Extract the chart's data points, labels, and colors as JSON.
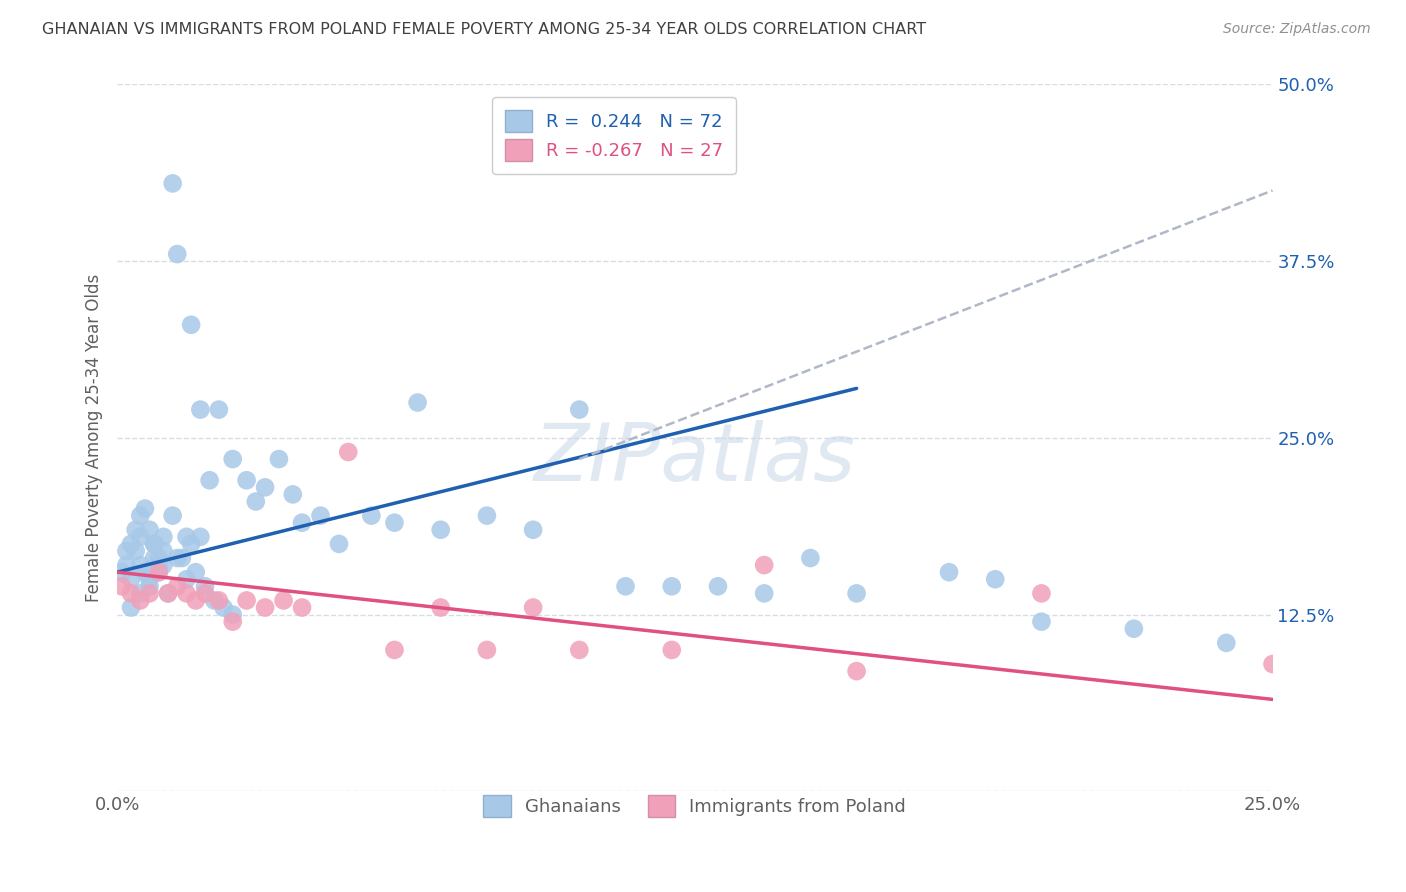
{
  "title": "GHANAIAN VS IMMIGRANTS FROM POLAND FEMALE POVERTY AMONG 25-34 YEAR OLDS CORRELATION CHART",
  "source": "Source: ZipAtlas.com",
  "ylabel": "Female Poverty Among 25-34 Year Olds",
  "xlim": [
    0.0,
    0.25
  ],
  "ylim": [
    0.0,
    0.5
  ],
  "yticks": [
    0.0,
    0.125,
    0.25,
    0.375,
    0.5
  ],
  "ytick_labels": [
    "",
    "12.5%",
    "25.0%",
    "37.5%",
    "50.0%"
  ],
  "xticks": [
    0.0,
    0.25
  ],
  "xtick_labels": [
    "0.0%",
    "25.0%"
  ],
  "legend_label1": "R =  0.244   N = 72",
  "legend_label2": "R = -0.267   N = 27",
  "blue_color": "#a8c8e8",
  "pink_color": "#f0a0b8",
  "blue_line_color": "#2060b0",
  "pink_line_color": "#e05080",
  "dashed_line_color": "#b0b8c8",
  "watermark": "ZIPatlas",
  "background_color": "#ffffff",
  "grid_color": "#d8dce8",
  "title_color": "#404040",
  "blue_x": [
    0.001,
    0.002,
    0.003,
    0.004,
    0.005,
    0.006,
    0.007,
    0.008,
    0.009,
    0.01,
    0.005,
    0.008,
    0.01,
    0.012,
    0.013,
    0.015,
    0.016,
    0.018,
    0.002,
    0.003,
    0.004,
    0.005,
    0.006,
    0.007,
    0.008,
    0.009,
    0.01,
    0.012,
    0.014,
    0.016,
    0.018,
    0.02,
    0.022,
    0.025,
    0.028,
    0.03,
    0.032,
    0.035,
    0.038,
    0.04,
    0.044,
    0.048,
    0.055,
    0.06,
    0.065,
    0.07,
    0.08,
    0.09,
    0.1,
    0.11,
    0.12,
    0.13,
    0.14,
    0.15,
    0.16,
    0.18,
    0.19,
    0.2,
    0.22,
    0.24,
    0.003,
    0.005,
    0.007,
    0.009,
    0.011,
    0.013,
    0.015,
    0.017,
    0.019,
    0.021,
    0.023,
    0.025
  ],
  "blue_y": [
    0.155,
    0.16,
    0.15,
    0.17,
    0.16,
    0.155,
    0.15,
    0.165,
    0.16,
    0.17,
    0.18,
    0.175,
    0.18,
    0.43,
    0.38,
    0.18,
    0.33,
    0.27,
    0.17,
    0.175,
    0.185,
    0.195,
    0.2,
    0.185,
    0.175,
    0.165,
    0.16,
    0.195,
    0.165,
    0.175,
    0.18,
    0.22,
    0.27,
    0.235,
    0.22,
    0.205,
    0.215,
    0.235,
    0.21,
    0.19,
    0.195,
    0.175,
    0.195,
    0.19,
    0.275,
    0.185,
    0.195,
    0.185,
    0.27,
    0.145,
    0.145,
    0.145,
    0.14,
    0.165,
    0.14,
    0.155,
    0.15,
    0.12,
    0.115,
    0.105,
    0.13,
    0.14,
    0.145,
    0.155,
    0.14,
    0.165,
    0.15,
    0.155,
    0.145,
    0.135,
    0.13,
    0.125
  ],
  "pink_x": [
    0.001,
    0.003,
    0.005,
    0.007,
    0.009,
    0.011,
    0.013,
    0.015,
    0.017,
    0.019,
    0.022,
    0.025,
    0.028,
    0.032,
    0.036,
    0.04,
    0.05,
    0.06,
    0.07,
    0.08,
    0.09,
    0.1,
    0.12,
    0.14,
    0.16,
    0.2,
    0.25
  ],
  "pink_y": [
    0.145,
    0.14,
    0.135,
    0.14,
    0.155,
    0.14,
    0.145,
    0.14,
    0.135,
    0.14,
    0.135,
    0.12,
    0.135,
    0.13,
    0.135,
    0.13,
    0.24,
    0.1,
    0.13,
    0.1,
    0.13,
    0.1,
    0.1,
    0.16,
    0.085,
    0.14,
    0.09
  ],
  "blue_trend_x": [
    0.0,
    0.16
  ],
  "blue_trend_y": [
    0.155,
    0.285
  ],
  "pink_trend_x": [
    0.0,
    0.25
  ],
  "pink_trend_y": [
    0.155,
    0.065
  ],
  "dashed_trend_x": [
    0.1,
    0.25
  ],
  "dashed_trend_y": [
    0.235,
    0.425
  ]
}
